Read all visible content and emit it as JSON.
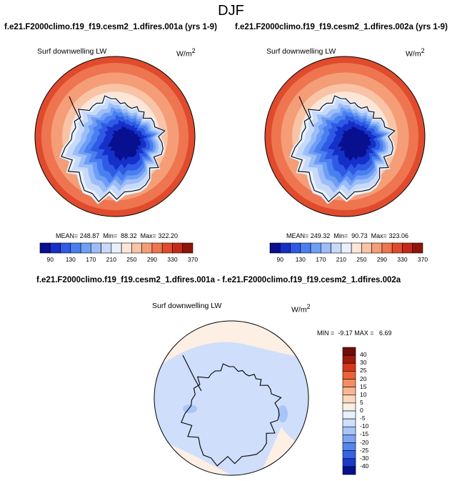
{
  "title": "DJF",
  "run_a": "f.e21.F2000climo.f19_f19.cesm2_1.dfires.001a (yrs 1-9)",
  "run_b": "f.e21.F2000climo.f19_f19.cesm2_1.dfires.002a (yrs 1-9)",
  "diff_title": "f.e21.F2000climo.f19_f19.cesm2_1.dfires.001a - f.e21.F2000climo.f19_f19.cesm2_1.dfires.002a",
  "colors": {
    "abs_scale": [
      "#08108f",
      "#1530c8",
      "#2e5ae6",
      "#4a7ff0",
      "#6e9ef5",
      "#9cbdf8",
      "#c7dafa",
      "#e8f0fd",
      "#fde6d8",
      "#f9c3a5",
      "#f49d77",
      "#ee7550",
      "#e04b2e",
      "#c42a1a",
      "#8e1508"
    ],
    "diff_scale": [
      "#08108f",
      "#1a3ac8",
      "#3463e4",
      "#5585ef",
      "#7ea5f4",
      "#a9c5f8",
      "#cfdefb",
      "#e6f0ff",
      "#fdefe3",
      "#fbd7bd",
      "#f8b593",
      "#f48d62",
      "#ec6236",
      "#d7381a",
      "#a01a0c",
      "#6e0e06"
    ]
  },
  "chart_data": [
    {
      "type": "heatmap",
      "projection": "south-polar-stereographic",
      "variable": "Surf downwelling LW",
      "units": "W/m",
      "units_sup": "2",
      "stats": {
        "mean_label": "MEAN=",
        "mean": "248.87",
        "min_label": "Min=",
        "min": "88.32",
        "max_label": "Max=",
        "max": "322.20"
      },
      "levels": [
        90,
        110,
        130,
        150,
        170,
        190,
        210,
        230,
        250,
        270,
        290,
        310,
        330,
        350,
        370
      ],
      "level_labels": [
        "90",
        "130",
        "170",
        "210",
        "250",
        "290",
        "330",
        "370"
      ],
      "value_range": [
        88.32,
        322.2
      ]
    },
    {
      "type": "heatmap",
      "projection": "south-polar-stereographic",
      "variable": "Surf downwelling LW",
      "units": "W/m",
      "units_sup": "2",
      "stats": {
        "mean_label": "MEAN=",
        "mean": "249.32",
        "min_label": "Min=",
        "min": "90.73",
        "max_label": "Max=",
        "max": "323.06"
      },
      "levels": [
        90,
        110,
        130,
        150,
        170,
        190,
        210,
        230,
        250,
        270,
        290,
        310,
        330,
        350,
        370
      ],
      "level_labels": [
        "90",
        "130",
        "170",
        "210",
        "250",
        "290",
        "330",
        "370"
      ],
      "value_range": [
        90.73,
        323.06
      ]
    },
    {
      "type": "heatmap",
      "projection": "south-polar-stereographic",
      "variable": "Surf downwelling LW",
      "units": "W/m",
      "units_sup": "2",
      "stats_line": "MIN =  -9.17 MAX =   6.69",
      "stats": {
        "min": "-9.17",
        "max": "6.69"
      },
      "levels": [
        -40,
        -30,
        -25,
        -20,
        -15,
        -10,
        -5,
        0,
        5,
        10,
        15,
        20,
        25,
        30,
        40
      ],
      "level_labels": [
        "40",
        "30",
        "25",
        "20",
        "15",
        "10",
        "5",
        "0",
        "-5",
        "-10",
        "-15",
        "-20",
        "-25",
        "-30",
        "-40"
      ],
      "value_range": [
        -9.17,
        6.69
      ]
    }
  ]
}
